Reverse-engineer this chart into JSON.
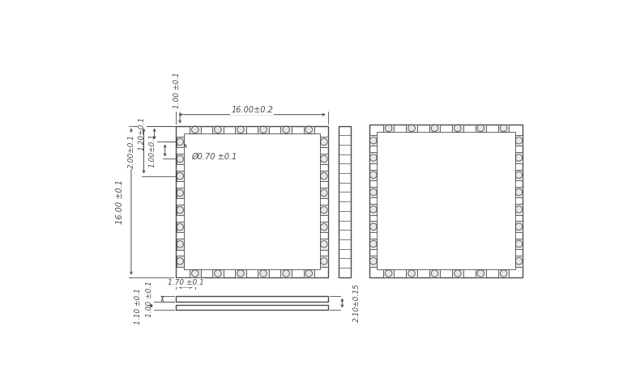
{
  "bg_color": "#ffffff",
  "line_color": "#4a4a4a",
  "lw": 1.0,
  "thin_lw": 0.6,
  "dimensions": {
    "top_width_label": "16.00±0.2",
    "left_height_label": "16.00 ±0.1",
    "pad_diameter_label": "Ø0.70 ±0.1",
    "pad_pitch_label": "1.00±0.1",
    "pad_offset_label": "1.20±0.1",
    "pad_width_label": "2.00±0.1",
    "bottom_offset_label": "1.70 ±0.1",
    "top_gap_label": "1.00 ±0.1",
    "bot_h1_label": "1.00 ±0.1",
    "bot_h2_label": "1.10 ±0.1",
    "total_h_label": "2.10±0.15"
  }
}
